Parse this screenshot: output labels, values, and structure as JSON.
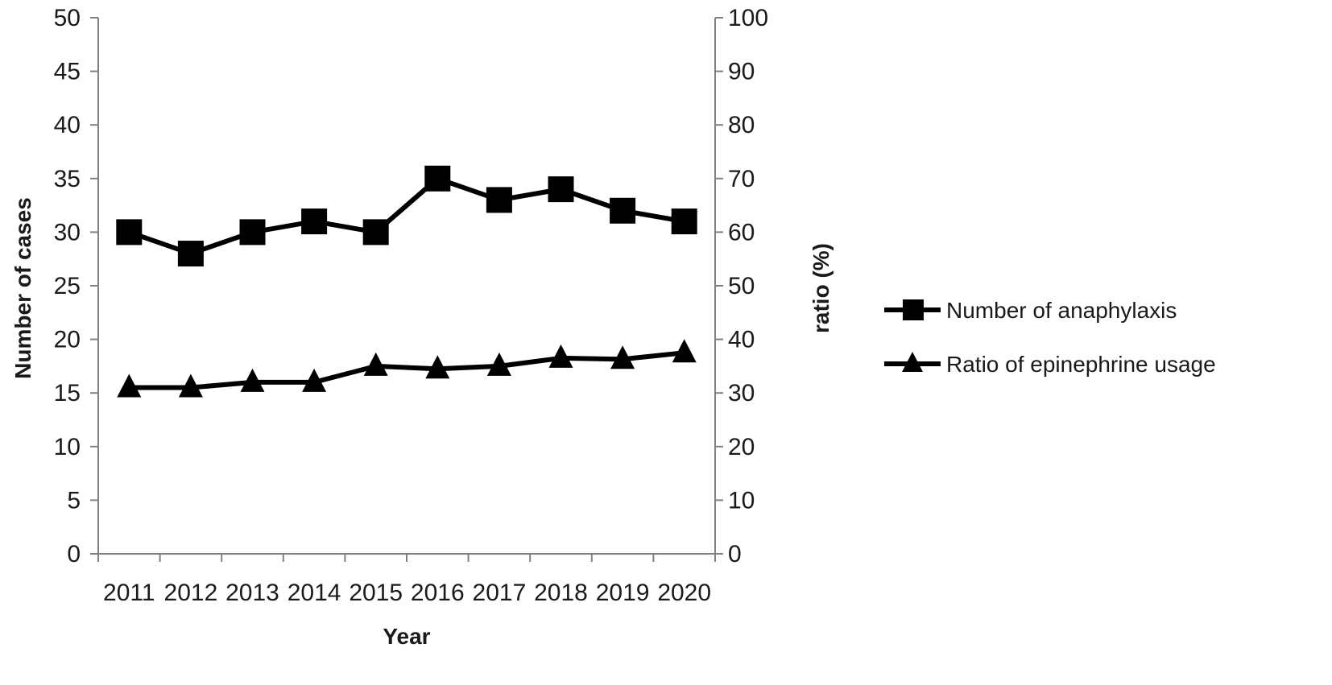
{
  "chart_data": {
    "type": "line",
    "categories": [
      "2011",
      "2012",
      "2013",
      "2014",
      "2015",
      "2016",
      "2017",
      "2018",
      "2019",
      "2020"
    ],
    "xlabel": "Year",
    "ylabel": "Number of cases",
    "y2label": "ratio (%)",
    "ylim": [
      0,
      50
    ],
    "y2lim": [
      0,
      100
    ],
    "yticks": [
      "0",
      "5",
      "10",
      "15",
      "20",
      "25",
      "30",
      "35",
      "40",
      "45",
      "50"
    ],
    "y2ticks": [
      "0",
      "10",
      "20",
      "30",
      "40",
      "50",
      "60",
      "70",
      "80",
      "90",
      "100"
    ],
    "grid": false,
    "legend_position": "right",
    "series": [
      {
        "name": "Number of anaphylaxis",
        "axis": "left",
        "marker": "square",
        "color": "#000000",
        "values": [
          30,
          28,
          30,
          31,
          30,
          35,
          33,
          34,
          32,
          31
        ]
      },
      {
        "name": "Ratio of epinephrine usage",
        "axis": "right",
        "marker": "triangle",
        "color": "#000000",
        "values": [
          31,
          31,
          32,
          32,
          35,
          34.5,
          35,
          36.5,
          36.3,
          37.5
        ]
      }
    ]
  }
}
